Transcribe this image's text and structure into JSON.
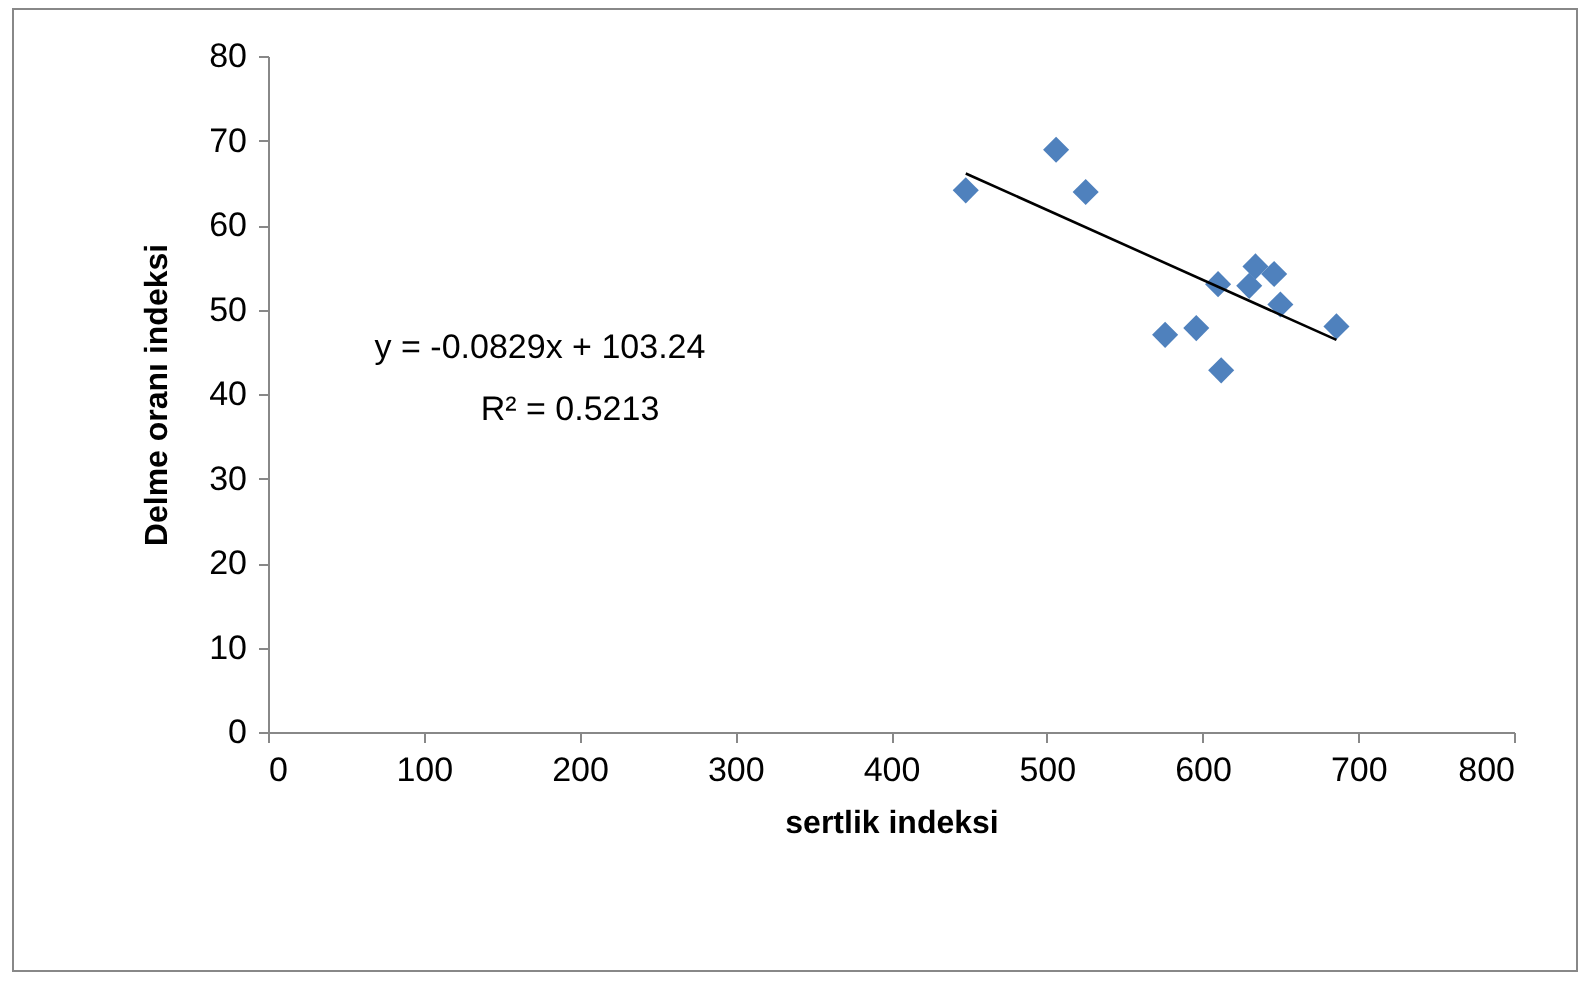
{
  "chart_data": {
    "type": "scatter",
    "xlabel": "sertlik indeksi",
    "ylabel": "Delme oranı indeksi",
    "xlim": [
      0,
      800
    ],
    "xticks": [
      0,
      100,
      200,
      300,
      400,
      500,
      600,
      700,
      800
    ],
    "ylim": [
      0,
      80
    ],
    "yticks": [
      0,
      10,
      20,
      30,
      40,
      50,
      60,
      70,
      80
    ],
    "grid": false,
    "marker": "diamond",
    "series": [
      {
        "color": "#4f81bd",
        "x": [
          448,
          506,
          525,
          610,
          634,
          646,
          630,
          650,
          686,
          576,
          596,
          612
        ],
        "values": [
          64.1,
          68.9,
          63.9,
          53,
          55.1,
          54.2,
          52.8,
          50.6,
          48,
          47,
          47.8,
          42.8
        ]
      },
      {
        "type": "line",
        "marker": "none",
        "color": "#000000",
        "x": [
          448,
          686
        ],
        "values": [
          66.1,
          46.4
        ]
      }
    ],
    "annotations": [
      "y = -0.0829x + 103.24",
      "R² = 0.5213"
    ]
  }
}
